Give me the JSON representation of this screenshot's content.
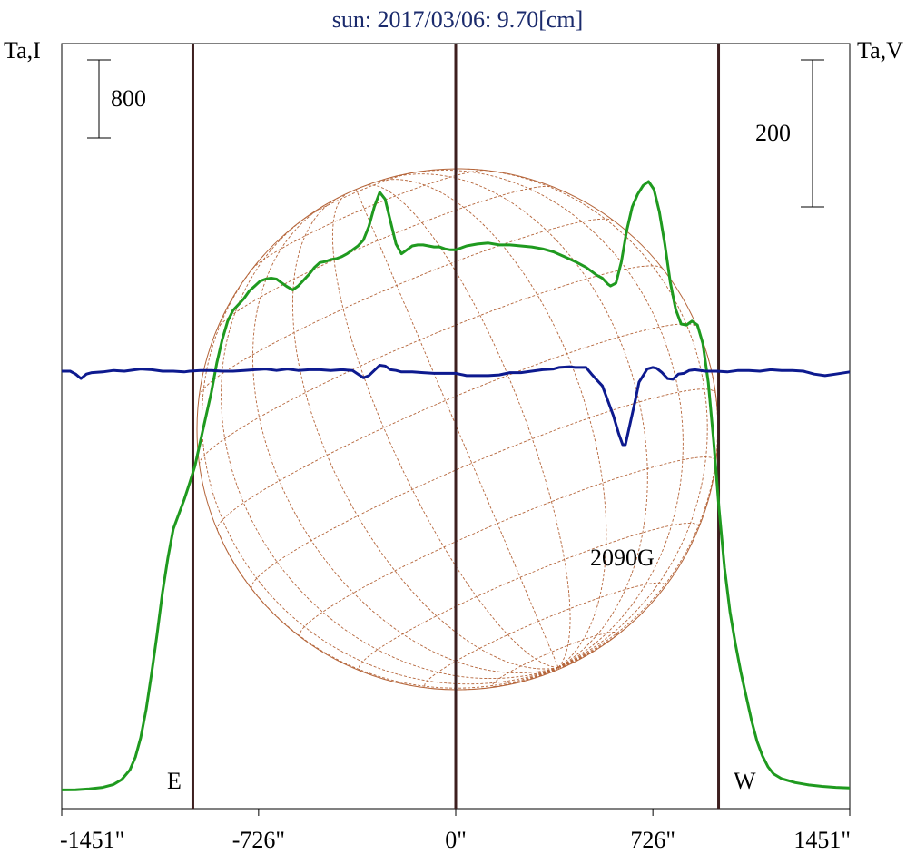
{
  "chart_data": {
    "type": "line",
    "title": "sun: 2017/03/06: 9.70[cm]",
    "left_axis_label": "Ta,I",
    "right_axis_label": "Ta,V",
    "left_scale_bar": "800",
    "right_scale_bar": "200",
    "x_tick_labels": [
      "-1451\"",
      "-726\"",
      "0\"",
      "726\"",
      "1451\""
    ],
    "x_ticks": [
      -1451,
      -726,
      0,
      726,
      1451
    ],
    "xlim": [
      -1451,
      1451
    ],
    "limb_markers": [
      -968,
      0,
      968
    ],
    "east_label": "E",
    "west_label": "W",
    "annotation": {
      "text": "2090G",
      "x": 650
    },
    "colors": {
      "title": "#1a2a6c",
      "intensity": "#1f9a1f",
      "polarization": "#0d1a8f",
      "grid": "#b5653a",
      "markers": "#3d1f1f"
    },
    "series": [
      {
        "key": "intensity",
        "points": [
          [
            -1451,
            24
          ],
          [
            -1400,
            26
          ],
          [
            -1350,
            35
          ],
          [
            -1300,
            50
          ],
          [
            -1260,
            80
          ],
          [
            -1230,
            130
          ],
          [
            -1200,
            230
          ],
          [
            -1180,
            360
          ],
          [
            -1160,
            560
          ],
          [
            -1140,
            850
          ],
          [
            -1120,
            1220
          ],
          [
            -1100,
            1620
          ],
          [
            -1080,
            2050
          ],
          [
            -1060,
            2400
          ],
          [
            -1040,
            2700
          ],
          [
            -1020,
            2850
          ],
          [
            -1000,
            3000
          ],
          [
            -980,
            3170
          ],
          [
            -960,
            3350
          ],
          [
            -940,
            3600
          ],
          [
            -920,
            3850
          ],
          [
            -900,
            4100
          ],
          [
            -880,
            4400
          ],
          [
            -860,
            4640
          ],
          [
            -840,
            4830
          ],
          [
            -820,
            4940
          ],
          [
            -800,
            5000
          ],
          [
            -780,
            5060
          ],
          [
            -760,
            5140
          ],
          [
            -740,
            5190
          ],
          [
            -720,
            5240
          ],
          [
            -700,
            5260
          ],
          [
            -680,
            5270
          ],
          [
            -660,
            5260
          ],
          [
            -640,
            5220
          ],
          [
            -620,
            5180
          ],
          [
            -600,
            5150
          ],
          [
            -580,
            5190
          ],
          [
            -560,
            5250
          ],
          [
            -540,
            5310
          ],
          [
            -520,
            5380
          ],
          [
            -500,
            5430
          ],
          [
            -480,
            5440
          ],
          [
            -460,
            5460
          ],
          [
            -440,
            5470
          ],
          [
            -420,
            5490
          ],
          [
            -400,
            5520
          ],
          [
            -380,
            5560
          ],
          [
            -360,
            5600
          ],
          [
            -340,
            5660
          ],
          [
            -320,
            5800
          ],
          [
            -300,
            6000
          ],
          [
            -280,
            6150
          ],
          [
            -260,
            6080
          ],
          [
            -240,
            5850
          ],
          [
            -220,
            5620
          ],
          [
            -200,
            5520
          ],
          [
            -180,
            5560
          ],
          [
            -160,
            5600
          ],
          [
            -140,
            5610
          ],
          [
            -120,
            5610
          ],
          [
            -100,
            5600
          ],
          [
            -80,
            5590
          ],
          [
            -60,
            5590
          ],
          [
            -40,
            5570
          ],
          [
            -20,
            5560
          ],
          [
            0,
            5560
          ],
          [
            40,
            5600
          ],
          [
            80,
            5620
          ],
          [
            120,
            5630
          ],
          [
            160,
            5610
          ],
          [
            200,
            5610
          ],
          [
            240,
            5600
          ],
          [
            280,
            5590
          ],
          [
            320,
            5570
          ],
          [
            360,
            5540
          ],
          [
            400,
            5490
          ],
          [
            440,
            5440
          ],
          [
            480,
            5380
          ],
          [
            520,
            5300
          ],
          [
            540,
            5270
          ],
          [
            560,
            5210
          ],
          [
            570,
            5190
          ],
          [
            590,
            5220
          ],
          [
            610,
            5440
          ],
          [
            630,
            5760
          ],
          [
            650,
            6000
          ],
          [
            670,
            6130
          ],
          [
            690,
            6220
          ],
          [
            710,
            6260
          ],
          [
            730,
            6180
          ],
          [
            750,
            5950
          ],
          [
            770,
            5620
          ],
          [
            790,
            5230
          ],
          [
            810,
            4950
          ],
          [
            830,
            4800
          ],
          [
            850,
            4790
          ],
          [
            870,
            4830
          ],
          [
            890,
            4790
          ],
          [
            910,
            4600
          ],
          [
            930,
            4200
          ],
          [
            950,
            3600
          ],
          [
            970,
            2900
          ],
          [
            990,
            2300
          ],
          [
            1010,
            1850
          ],
          [
            1030,
            1520
          ],
          [
            1050,
            1230
          ],
          [
            1070,
            980
          ],
          [
            1090,
            730
          ],
          [
            1110,
            520
          ],
          [
            1130,
            370
          ],
          [
            1150,
            260
          ],
          [
            1170,
            190
          ],
          [
            1200,
            140
          ],
          [
            1250,
            100
          ],
          [
            1300,
            75
          ],
          [
            1350,
            60
          ],
          [
            1400,
            50
          ],
          [
            1451,
            45
          ]
        ]
      },
      {
        "key": "polarization",
        "points": [
          [
            -1451,
            0
          ],
          [
            -1420,
            0
          ],
          [
            -1400,
            -4
          ],
          [
            -1380,
            -10
          ],
          [
            -1360,
            -4
          ],
          [
            -1340,
            -2
          ],
          [
            -1300,
            -1
          ],
          [
            -1260,
            1
          ],
          [
            -1220,
            0
          ],
          [
            -1180,
            2
          ],
          [
            -1160,
            3
          ],
          [
            -1120,
            2
          ],
          [
            -1080,
            0
          ],
          [
            -1040,
            0
          ],
          [
            -1000,
            -1
          ],
          [
            -980,
            0
          ],
          [
            -940,
            1
          ],
          [
            -900,
            1
          ],
          [
            -860,
            0
          ],
          [
            -820,
            0
          ],
          [
            -780,
            1
          ],
          [
            -740,
            2
          ],
          [
            -700,
            3
          ],
          [
            -660,
            1
          ],
          [
            -620,
            3
          ],
          [
            -580,
            1
          ],
          [
            -540,
            2
          ],
          [
            -500,
            2
          ],
          [
            -460,
            1
          ],
          [
            -420,
            2
          ],
          [
            -380,
            1
          ],
          [
            -360,
            -4
          ],
          [
            -340,
            -9
          ],
          [
            -320,
            -6
          ],
          [
            -300,
            1
          ],
          [
            -280,
            8
          ],
          [
            -260,
            7
          ],
          [
            -240,
            2
          ],
          [
            -220,
            1
          ],
          [
            -200,
            -1
          ],
          [
            -160,
            -1
          ],
          [
            -120,
            -2
          ],
          [
            -80,
            -3
          ],
          [
            -40,
            -3
          ],
          [
            0,
            -3
          ],
          [
            40,
            -6
          ],
          [
            80,
            -6
          ],
          [
            120,
            -6
          ],
          [
            160,
            -5
          ],
          [
            200,
            -2
          ],
          [
            240,
            -2
          ],
          [
            280,
            0
          ],
          [
            320,
            2
          ],
          [
            360,
            3
          ],
          [
            380,
            5
          ],
          [
            420,
            6
          ],
          [
            440,
            5
          ],
          [
            480,
            5
          ],
          [
            500,
            -4
          ],
          [
            520,
            -12
          ],
          [
            540,
            -20
          ],
          [
            560,
            -40
          ],
          [
            580,
            -60
          ],
          [
            600,
            -85
          ],
          [
            615,
            -100
          ],
          [
            625,
            -100
          ],
          [
            640,
            -75
          ],
          [
            660,
            -42
          ],
          [
            675,
            -15
          ],
          [
            690,
            -6
          ],
          [
            705,
            3
          ],
          [
            725,
            5
          ],
          [
            740,
            4
          ],
          [
            760,
            -2
          ],
          [
            780,
            -10
          ],
          [
            800,
            -11
          ],
          [
            820,
            -4
          ],
          [
            840,
            -3
          ],
          [
            860,
            1
          ],
          [
            880,
            2
          ],
          [
            920,
            0
          ],
          [
            960,
            0
          ],
          [
            1000,
            -1
          ],
          [
            1040,
            1
          ],
          [
            1080,
            1
          ],
          [
            1120,
            0
          ],
          [
            1160,
            2
          ],
          [
            1200,
            1
          ],
          [
            1240,
            1
          ],
          [
            1280,
            0
          ],
          [
            1320,
            -4
          ],
          [
            1360,
            -6
          ],
          [
            1400,
            -4
          ],
          [
            1451,
            -1
          ]
        ]
      }
    ]
  }
}
